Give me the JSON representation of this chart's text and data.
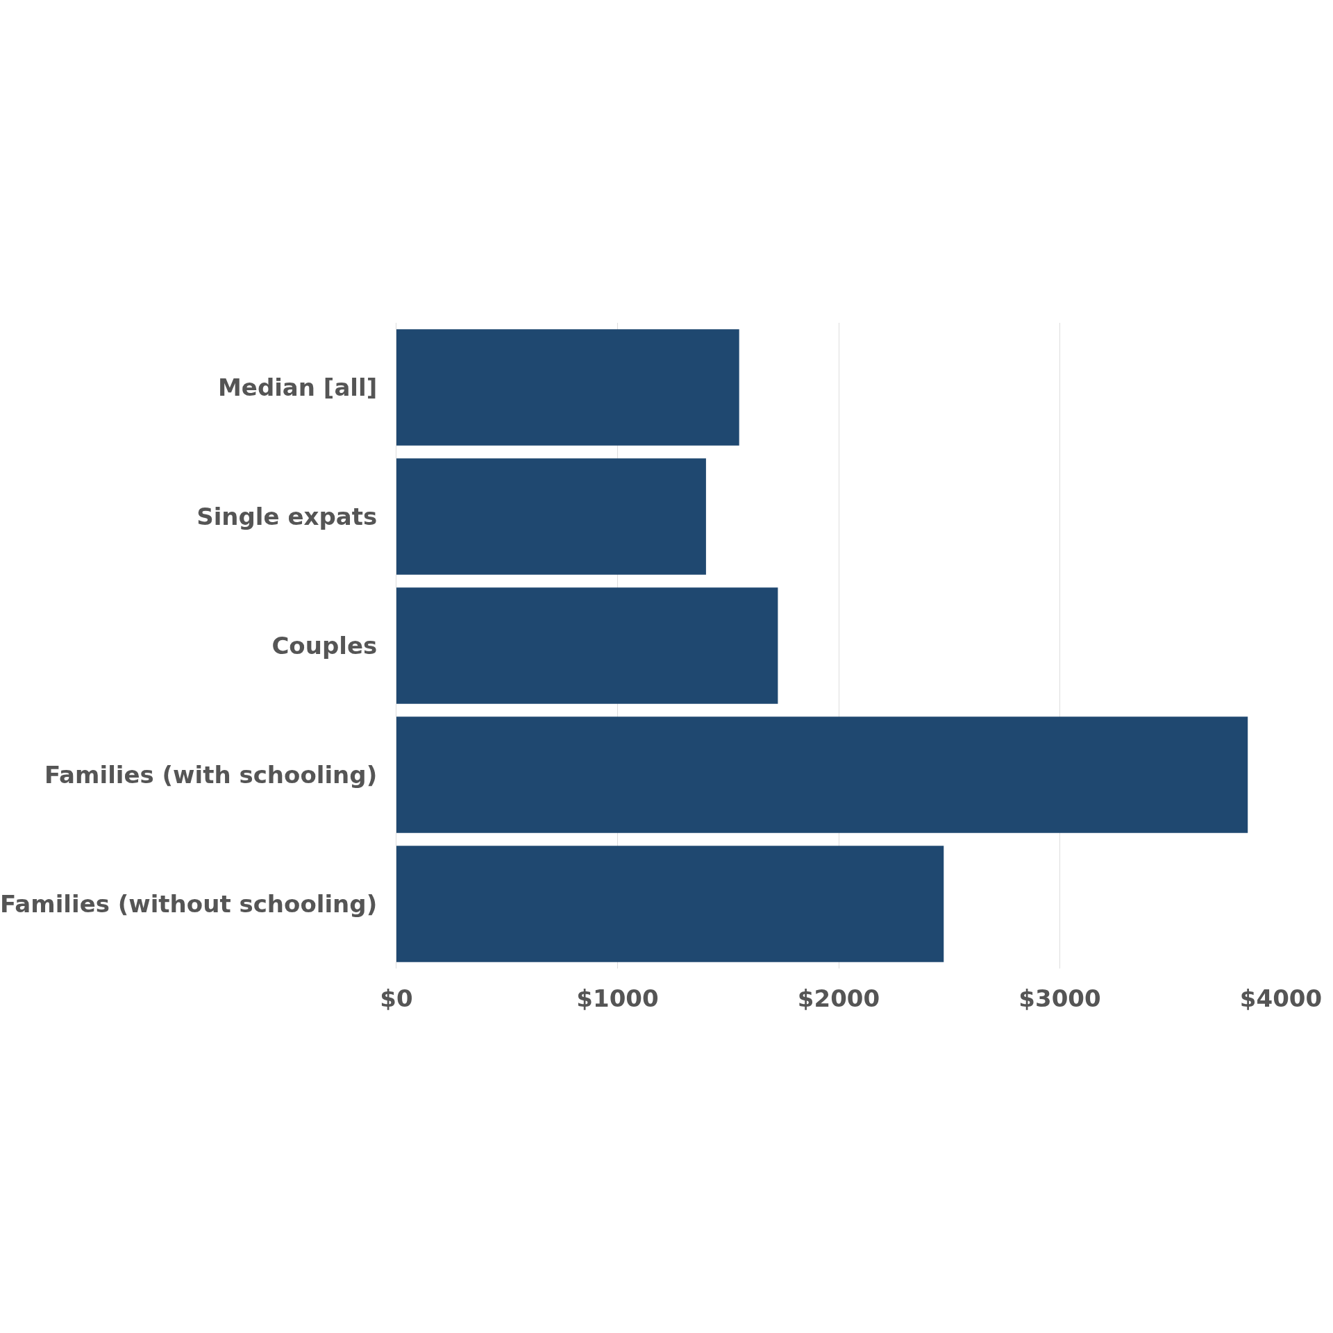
{
  "chart_data": {
    "type": "bar",
    "orientation": "horizontal",
    "categories": [
      "Median [all]",
      "Single expats",
      "Couples",
      "Families (with schooling)",
      "Families (without schooling)"
    ],
    "values": [
      1550,
      1400,
      1725,
      3850,
      2475
    ],
    "color": "#1f4870",
    "xlim": [
      0,
      4000
    ],
    "xticks": [
      {
        "value": 0,
        "label": "$0"
      },
      {
        "value": 1000,
        "label": "$1000"
      },
      {
        "value": 2000,
        "label": "$2000"
      },
      {
        "value": 3000,
        "label": "$3000"
      },
      {
        "value": 4000,
        "label": "$4000"
      }
    ],
    "grid": "x"
  }
}
